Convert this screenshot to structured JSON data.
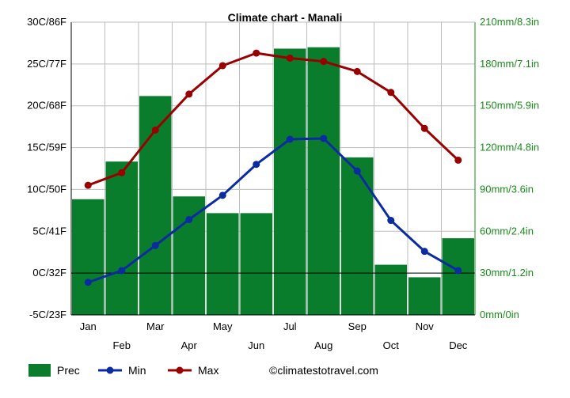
{
  "chart_data": {
    "type": "bar+line",
    "title": "Climate chart - Manali",
    "categories": [
      "Jan",
      "Feb",
      "Mar",
      "Apr",
      "May",
      "Jun",
      "Jul",
      "Aug",
      "Sep",
      "Oct",
      "Nov",
      "Dec"
    ],
    "left_axis": {
      "ylim": [
        -5,
        30
      ],
      "ticks": [
        -5,
        0,
        5,
        10,
        15,
        20,
        25,
        30
      ],
      "tick_labels": [
        "-5C/23F",
        "0C/32F",
        "5C/41F",
        "10C/50F",
        "15C/59F",
        "20C/68F",
        "25C/77F",
        "30C/86F"
      ]
    },
    "right_axis": {
      "ylim": [
        0,
        210
      ],
      "ticks": [
        0,
        30,
        60,
        90,
        120,
        150,
        180,
        210
      ],
      "tick_labels": [
        "0mm/0in",
        "30mm/1.2in",
        "60mm/2.4in",
        "90mm/3.6in",
        "120mm/4.8in",
        "150mm/5.9in",
        "180mm/7.1in",
        "210mm/8.3in"
      ],
      "color": "#1a8a1a"
    },
    "series": [
      {
        "name": "Prec",
        "kind": "bar",
        "axis": "right",
        "color": "#0a7d2c",
        "values": [
          83,
          110,
          157,
          85,
          73,
          73,
          191,
          192,
          113,
          36,
          27,
          55
        ]
      },
      {
        "name": "Min",
        "kind": "line",
        "axis": "left",
        "color": "#0b2ca0",
        "values": [
          -1.1,
          0.3,
          3.3,
          6.4,
          9.3,
          13.0,
          16.0,
          16.1,
          12.2,
          6.3,
          2.6,
          0.3
        ]
      },
      {
        "name": "Max",
        "kind": "line",
        "axis": "left",
        "color": "#990000",
        "values": [
          10.5,
          12.0,
          17.1,
          21.4,
          24.8,
          26.3,
          25.7,
          25.3,
          24.1,
          21.6,
          17.3,
          13.5
        ]
      }
    ],
    "grid": true,
    "legend_position": "bottom",
    "source_label": "©climatestotravel.com"
  }
}
